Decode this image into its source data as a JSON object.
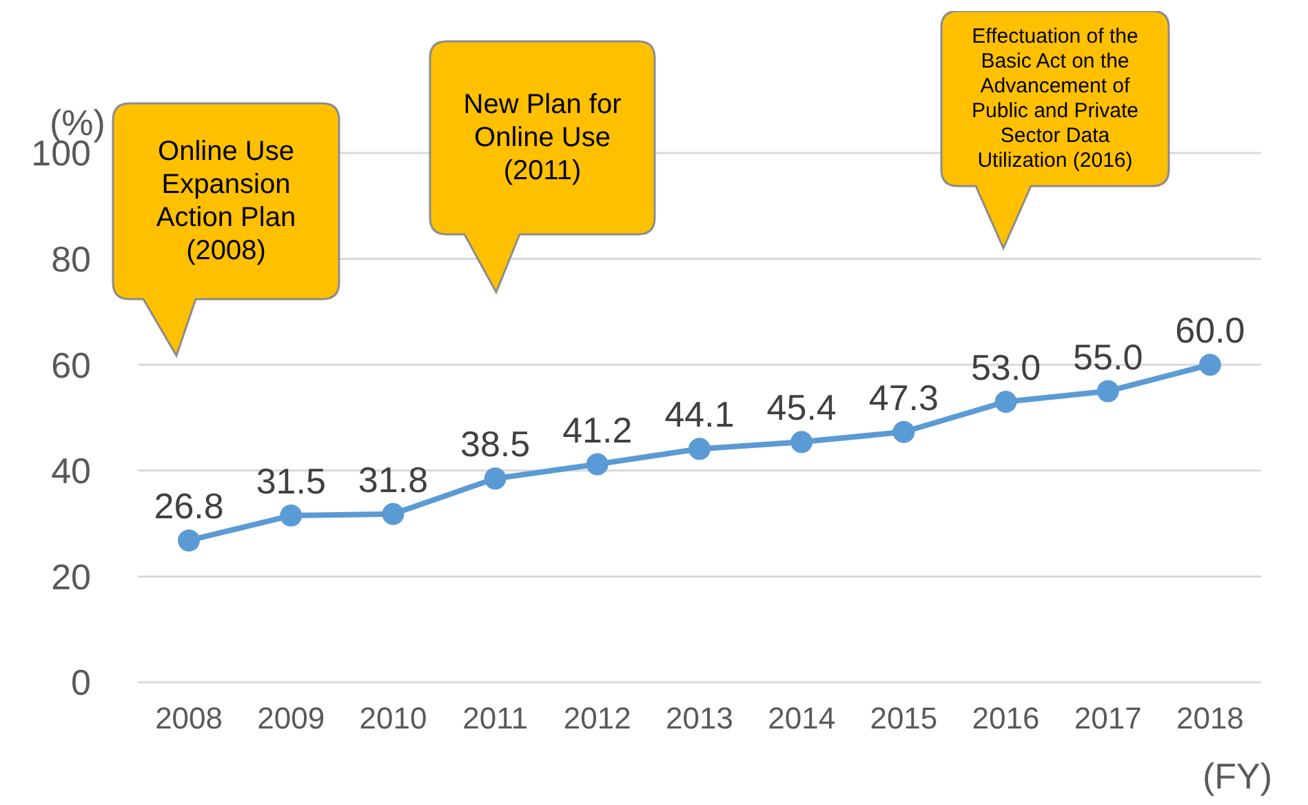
{
  "chart_data": {
    "type": "line",
    "xlabel": "(FY)",
    "ylabel": "(%)",
    "categories": [
      "2008",
      "2009",
      "2010",
      "2011",
      "2012",
      "2013",
      "2014",
      "2015",
      "2016",
      "2017",
      "2018"
    ],
    "series": [
      {
        "color": "#5b9bd5",
        "values": [
          26.8,
          31.5,
          31.8,
          38.5,
          41.2,
          44.1,
          45.4,
          47.3,
          53.0,
          55.0,
          60.0
        ]
      }
    ],
    "ylim": [
      0,
      100
    ],
    "yticks": [
      0,
      20,
      40,
      60,
      80,
      100
    ],
    "grid": "y",
    "legend": false,
    "marker": "circle",
    "line_style": "solid",
    "value_labels": [
      "26.8",
      "31.5",
      "31.8",
      "38.5",
      "41.2",
      "44.1",
      "45.4",
      "47.3",
      "53.0",
      "55.0",
      "60.0"
    ],
    "annotations": [
      "Online Use Expansion Action Plan (2008)",
      "New Plan for Online Use (2011)",
      "Effectuation of the Basic Act on the Advancement of Public and Private Sector Data Utilization (2016)"
    ]
  }
}
